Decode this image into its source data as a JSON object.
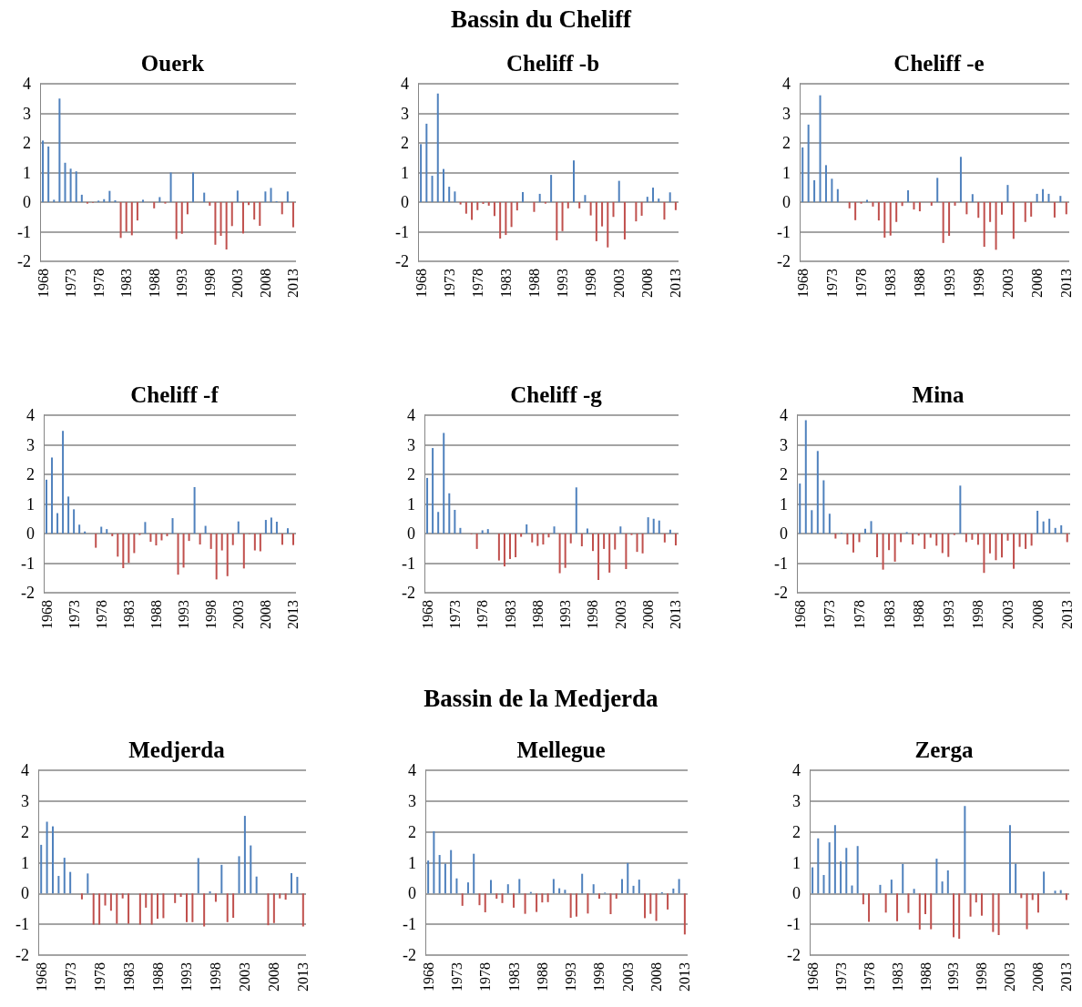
{
  "chart_data": [
    {
      "type": "bar",
      "title": "Ouerk",
      "annotations": [
        "Bassin du Cheliff"
      ],
      "categories": [
        "1968",
        null,
        null,
        null,
        null,
        "1973",
        null,
        null,
        null,
        null,
        "1978",
        null,
        null,
        null,
        null,
        "1983",
        null,
        null,
        null,
        null,
        "1988",
        null,
        null,
        null,
        null,
        "1993",
        null,
        null,
        null,
        null,
        "1998",
        null,
        null,
        null,
        null,
        "2003",
        null,
        null,
        null,
        null,
        "2008",
        null,
        null,
        null,
        null,
        "2013"
      ],
      "ylim": [
        -2,
        4
      ],
      "yticks": [
        -2,
        -1,
        0,
        1,
        2,
        3,
        4
      ],
      "grid": "y",
      "values": [
        2.08,
        1.88,
        0.08,
        3.5,
        1.33,
        1.13,
        1.04,
        0.25,
        -0.05,
        -0.02,
        0.05,
        0.1,
        0.38,
        0.06,
        -1.21,
        -1.0,
        -1.12,
        -0.62,
        0.08,
        0,
        -0.21,
        0.17,
        -0.05,
        1.0,
        -1.25,
        -1.07,
        -0.41,
        1.0,
        0,
        0.32,
        -0.12,
        -1.44,
        -1.14,
        -1.6,
        -0.81,
        0.39,
        -1.06,
        -0.1,
        -0.59,
        -0.8,
        0.36,
        0.48,
        0.03,
        -0.41,
        0.36,
        -0.85
      ],
      "colors": [
        "#4f81bd",
        "#4f81bd",
        "#4f81bd",
        "#4f81bd",
        "#4f81bd",
        "#4f81bd",
        "#4f81bd",
        "#4f81bd",
        "#c0504d",
        "#c0504d",
        "#4f81bd",
        "#4f81bd",
        "#4f81bd",
        "#4f81bd",
        "#c0504d",
        "#c0504d",
        "#c0504d",
        "#c0504d",
        "#4f81bd",
        "#4f81bd",
        "#c0504d",
        "#4f81bd",
        "#c0504d",
        "#4f81bd",
        "#c0504d",
        "#c0504d",
        "#c0504d",
        "#4f81bd",
        "#4f81bd",
        "#4f81bd",
        "#c0504d",
        "#c0504d",
        "#c0504d",
        "#c0504d",
        "#c0504d",
        "#4f81bd",
        "#c0504d",
        "#c0504d",
        "#c0504d",
        "#c0504d",
        "#4f81bd",
        "#4f81bd",
        "#4f81bd",
        "#c0504d",
        "#4f81bd",
        "#c0504d"
      ]
    },
    {
      "type": "bar",
      "title": "Cheliff -b",
      "categories": [
        "1968",
        null,
        null,
        null,
        null,
        "1973",
        null,
        null,
        null,
        null,
        "1978",
        null,
        null,
        null,
        null,
        "1983",
        null,
        null,
        null,
        null,
        "1988",
        null,
        null,
        null,
        null,
        "1993",
        null,
        null,
        null,
        null,
        "1998",
        null,
        null,
        null,
        null,
        "2003",
        null,
        null,
        null,
        null,
        "2008",
        null,
        null,
        null,
        null,
        "2013"
      ],
      "ylim": [
        -2,
        4
      ],
      "yticks": [
        -2,
        -1,
        0,
        1,
        2,
        3,
        4
      ],
      "grid": "y",
      "values": [
        1.96,
        2.65,
        0.89,
        3.67,
        1.12,
        0.52,
        0.36,
        -0.08,
        -0.39,
        -0.6,
        -0.27,
        -0.06,
        -0.12,
        -0.47,
        -1.23,
        -1.11,
        -0.84,
        -0.28,
        0.34,
        0,
        -0.33,
        0.28,
        -0.05,
        0.92,
        -1.29,
        -0.98,
        -0.21,
        1.41,
        -0.21,
        0.24,
        -0.45,
        -1.32,
        -0.82,
        -1.53,
        -0.5,
        0.72,
        -1.26,
        0,
        -0.65,
        -0.46,
        0.18,
        0.49,
        0.12,
        -0.59,
        0.33,
        -0.27
      ],
      "colors": [
        "#4f81bd",
        "#4f81bd",
        "#4f81bd",
        "#4f81bd",
        "#4f81bd",
        "#4f81bd",
        "#4f81bd",
        "#c0504d",
        "#c0504d",
        "#c0504d",
        "#c0504d",
        "#c0504d",
        "#c0504d",
        "#c0504d",
        "#c0504d",
        "#c0504d",
        "#c0504d",
        "#c0504d",
        "#4f81bd",
        "#4f81bd",
        "#c0504d",
        "#4f81bd",
        "#c0504d",
        "#4f81bd",
        "#c0504d",
        "#c0504d",
        "#c0504d",
        "#4f81bd",
        "#c0504d",
        "#4f81bd",
        "#c0504d",
        "#c0504d",
        "#c0504d",
        "#c0504d",
        "#c0504d",
        "#4f81bd",
        "#c0504d",
        "#4f81bd",
        "#c0504d",
        "#c0504d",
        "#4f81bd",
        "#4f81bd",
        "#4f81bd",
        "#c0504d",
        "#4f81bd",
        "#c0504d"
      ]
    },
    {
      "type": "bar",
      "title": "Cheliff -e",
      "categories": [
        "1968",
        null,
        null,
        null,
        null,
        "1973",
        null,
        null,
        null,
        null,
        "1978",
        null,
        null,
        null,
        null,
        "1983",
        null,
        null,
        null,
        null,
        "1988",
        null,
        null,
        null,
        null,
        "1993",
        null,
        null,
        null,
        null,
        "1998",
        null,
        null,
        null,
        null,
        "2003",
        null,
        null,
        null,
        null,
        "2008",
        null,
        null,
        null,
        null,
        "2013"
      ],
      "ylim": [
        -2,
        4
      ],
      "yticks": [
        -2,
        -1,
        0,
        1,
        2,
        3,
        4
      ],
      "grid": "y",
      "values": [
        1.85,
        2.62,
        0.74,
        3.61,
        1.25,
        0.79,
        0.44,
        0,
        -0.21,
        -0.61,
        -0.05,
        0.08,
        -0.15,
        -0.62,
        -1.2,
        -1.13,
        -0.67,
        -0.13,
        0.4,
        -0.25,
        -0.31,
        0,
        -0.12,
        0.82,
        -1.38,
        -1.14,
        -0.12,
        1.53,
        -0.41,
        0.27,
        -0.53,
        -1.51,
        -0.67,
        -1.61,
        -0.42,
        0.58,
        -1.24,
        0,
        -0.67,
        -0.49,
        0.28,
        0.44,
        0.28,
        -0.52,
        0.21,
        -0.41
      ],
      "colors": [
        "#4f81bd",
        "#4f81bd",
        "#4f81bd",
        "#4f81bd",
        "#4f81bd",
        "#4f81bd",
        "#4f81bd",
        "#4f81bd",
        "#c0504d",
        "#c0504d",
        "#c0504d",
        "#4f81bd",
        "#c0504d",
        "#c0504d",
        "#c0504d",
        "#c0504d",
        "#c0504d",
        "#c0504d",
        "#4f81bd",
        "#c0504d",
        "#c0504d",
        "#4f81bd",
        "#c0504d",
        "#4f81bd",
        "#c0504d",
        "#c0504d",
        "#c0504d",
        "#4f81bd",
        "#c0504d",
        "#4f81bd",
        "#c0504d",
        "#c0504d",
        "#c0504d",
        "#c0504d",
        "#c0504d",
        "#4f81bd",
        "#c0504d",
        "#4f81bd",
        "#c0504d",
        "#c0504d",
        "#4f81bd",
        "#4f81bd",
        "#4f81bd",
        "#c0504d",
        "#4f81bd",
        "#c0504d"
      ]
    },
    {
      "type": "bar",
      "title": "Cheliff -f",
      "categories": [
        "1968",
        null,
        null,
        null,
        null,
        "1973",
        null,
        null,
        null,
        null,
        "1978",
        null,
        null,
        null,
        null,
        "1983",
        null,
        null,
        null,
        null,
        "1988",
        null,
        null,
        null,
        null,
        "1993",
        null,
        null,
        null,
        null,
        "1998",
        null,
        null,
        null,
        null,
        "2003",
        null,
        null,
        null,
        null,
        "2008",
        null,
        null,
        null,
        null,
        "2013"
      ],
      "ylim": [
        -2,
        4
      ],
      "yticks": [
        -2,
        -1,
        0,
        1,
        2,
        3,
        4
      ],
      "grid": "y",
      "values": [
        1.82,
        2.57,
        0.69,
        3.47,
        1.25,
        0.82,
        0.3,
        0.07,
        0,
        -0.48,
        0.23,
        0.15,
        -0.09,
        -0.78,
        -1.17,
        -0.99,
        -0.66,
        -0.05,
        0.39,
        -0.28,
        -0.4,
        -0.23,
        -0.09,
        0.52,
        -1.39,
        -1.15,
        -0.25,
        1.57,
        -0.37,
        0.26,
        -0.52,
        -1.55,
        -0.57,
        -1.44,
        -0.39,
        0.41,
        -1.18,
        -0.02,
        -0.57,
        -0.6,
        0.46,
        0.54,
        0.4,
        -0.38,
        0.18,
        -0.39
      ],
      "colors": [
        "#4f81bd",
        "#4f81bd",
        "#4f81bd",
        "#4f81bd",
        "#4f81bd",
        "#4f81bd",
        "#4f81bd",
        "#4f81bd",
        "#4f81bd",
        "#c0504d",
        "#4f81bd",
        "#4f81bd",
        "#c0504d",
        "#c0504d",
        "#c0504d",
        "#c0504d",
        "#c0504d",
        "#c0504d",
        "#4f81bd",
        "#c0504d",
        "#c0504d",
        "#c0504d",
        "#c0504d",
        "#4f81bd",
        "#c0504d",
        "#c0504d",
        "#c0504d",
        "#4f81bd",
        "#c0504d",
        "#4f81bd",
        "#c0504d",
        "#c0504d",
        "#c0504d",
        "#c0504d",
        "#c0504d",
        "#4f81bd",
        "#c0504d",
        "#c0504d",
        "#c0504d",
        "#c0504d",
        "#4f81bd",
        "#4f81bd",
        "#4f81bd",
        "#c0504d",
        "#4f81bd",
        "#c0504d"
      ]
    },
    {
      "type": "bar",
      "title": "Cheliff -g",
      "categories": [
        "1968",
        null,
        null,
        null,
        null,
        "1973",
        null,
        null,
        null,
        null,
        "1978",
        null,
        null,
        null,
        null,
        "1983",
        null,
        null,
        null,
        null,
        "1988",
        null,
        null,
        null,
        null,
        "1993",
        null,
        null,
        null,
        null,
        "1998",
        null,
        null,
        null,
        null,
        "2003",
        null,
        null,
        null,
        null,
        "2008",
        null,
        null,
        null,
        null,
        "2013"
      ],
      "ylim": [
        -2,
        4
      ],
      "yticks": [
        -2,
        -1,
        0,
        1,
        2,
        3,
        4
      ],
      "grid": "y",
      "values": [
        1.88,
        2.89,
        0.73,
        3.4,
        1.36,
        0.8,
        0.19,
        0,
        -0.02,
        -0.52,
        0.11,
        0.15,
        0,
        -0.91,
        -1.11,
        -0.86,
        -0.8,
        -0.11,
        0.31,
        -0.3,
        -0.42,
        -0.37,
        -0.13,
        0.24,
        -1.34,
        -1.16,
        -0.33,
        1.56,
        -0.43,
        0.17,
        -0.59,
        -1.57,
        -0.52,
        -1.32,
        -0.54,
        0.24,
        -1.2,
        -0.05,
        -0.62,
        -0.67,
        0.55,
        0.5,
        0.44,
        -0.3,
        0.13,
        -0.4
      ],
      "colors": [
        "#4f81bd",
        "#4f81bd",
        "#4f81bd",
        "#4f81bd",
        "#4f81bd",
        "#4f81bd",
        "#4f81bd",
        "#4f81bd",
        "#c0504d",
        "#c0504d",
        "#4f81bd",
        "#4f81bd",
        "#4f81bd",
        "#c0504d",
        "#c0504d",
        "#c0504d",
        "#c0504d",
        "#c0504d",
        "#4f81bd",
        "#c0504d",
        "#c0504d",
        "#c0504d",
        "#c0504d",
        "#4f81bd",
        "#c0504d",
        "#c0504d",
        "#c0504d",
        "#4f81bd",
        "#c0504d",
        "#4f81bd",
        "#c0504d",
        "#c0504d",
        "#c0504d",
        "#c0504d",
        "#c0504d",
        "#4f81bd",
        "#c0504d",
        "#c0504d",
        "#c0504d",
        "#c0504d",
        "#4f81bd",
        "#4f81bd",
        "#4f81bd",
        "#c0504d",
        "#4f81bd",
        "#c0504d"
      ]
    },
    {
      "type": "bar",
      "title": "Mina",
      "categories": [
        "1968",
        null,
        null,
        null,
        null,
        "1973",
        null,
        null,
        null,
        null,
        "1978",
        null,
        null,
        null,
        null,
        "1983",
        null,
        null,
        null,
        null,
        "1988",
        null,
        null,
        null,
        null,
        "1993",
        null,
        null,
        null,
        null,
        "1998",
        null,
        null,
        null,
        null,
        "2003",
        null,
        null,
        null,
        null,
        "2008",
        null,
        null,
        null,
        null,
        "2013"
      ],
      "ylim": [
        -2,
        4
      ],
      "yticks": [
        -2,
        -1,
        0,
        1,
        2,
        3,
        4
      ],
      "grid": "y",
      "values": [
        1.69,
        3.83,
        0.79,
        2.79,
        1.8,
        0.67,
        -0.17,
        0.03,
        -0.37,
        -0.64,
        -0.29,
        0.16,
        0.42,
        -0.8,
        -1.22,
        -0.56,
        -0.95,
        -0.29,
        0.05,
        -0.37,
        -0.07,
        -0.52,
        -0.14,
        -0.41,
        -0.66,
        -0.79,
        -0.05,
        1.62,
        -0.29,
        -0.21,
        -0.38,
        -1.33,
        -0.67,
        -0.9,
        -0.81,
        -0.24,
        -1.19,
        -0.45,
        -0.52,
        -0.41,
        0.77,
        0.41,
        0.5,
        0.19,
        0.28,
        -0.29
      ],
      "colors": [
        "#4f81bd",
        "#4f81bd",
        "#4f81bd",
        "#4f81bd",
        "#4f81bd",
        "#4f81bd",
        "#c0504d",
        "#4f81bd",
        "#c0504d",
        "#c0504d",
        "#c0504d",
        "#4f81bd",
        "#4f81bd",
        "#c0504d",
        "#c0504d",
        "#c0504d",
        "#c0504d",
        "#c0504d",
        "#4f81bd",
        "#c0504d",
        "#c0504d",
        "#c0504d",
        "#c0504d",
        "#c0504d",
        "#c0504d",
        "#c0504d",
        "#c0504d",
        "#4f81bd",
        "#c0504d",
        "#c0504d",
        "#c0504d",
        "#c0504d",
        "#c0504d",
        "#c0504d",
        "#c0504d",
        "#c0504d",
        "#c0504d",
        "#c0504d",
        "#c0504d",
        "#c0504d",
        "#4f81bd",
        "#4f81bd",
        "#4f81bd",
        "#4f81bd",
        "#4f81bd",
        "#c0504d"
      ]
    },
    {
      "type": "bar",
      "title": "Medjerda",
      "annotations": [
        "Bassin de la Medjerda"
      ],
      "categories": [
        "1968",
        null,
        null,
        null,
        null,
        "1973",
        null,
        null,
        null,
        null,
        "1978",
        null,
        null,
        null,
        null,
        "1983",
        null,
        null,
        null,
        null,
        "1988",
        null,
        null,
        null,
        null,
        "1993",
        null,
        null,
        null,
        null,
        "1998",
        null,
        null,
        null,
        null,
        "2003",
        null,
        null,
        null,
        null,
        "2008",
        null,
        null,
        null,
        null,
        "2013"
      ],
      "ylim": [
        -2,
        4
      ],
      "yticks": [
        -2,
        -1,
        0,
        1,
        2,
        3,
        4
      ],
      "grid": "y",
      "values": [
        1.58,
        2.33,
        2.18,
        0.57,
        1.16,
        0.7,
        0,
        -0.19,
        0.65,
        -1.01,
        -1.01,
        -0.39,
        -0.56,
        -0.98,
        -0.16,
        -0.98,
        0,
        -1.01,
        -0.46,
        -1.01,
        -0.82,
        -0.8,
        null,
        -0.31,
        -0.11,
        -0.93,
        -0.93,
        1.15,
        -1.07,
        0.07,
        -0.27,
        0.93,
        -0.93,
        -0.79,
        1.21,
        2.52,
        1.56,
        0.55,
        0,
        -1.03,
        -0.96,
        -0.16,
        -0.2,
        0.66,
        0.54,
        -1.07
      ],
      "colors": [
        "#4f81bd",
        "#4f81bd",
        "#4f81bd",
        "#4f81bd",
        "#4f81bd",
        "#4f81bd",
        "#4f81bd",
        "#c0504d",
        "#4f81bd",
        "#c0504d",
        "#c0504d",
        "#c0504d",
        "#c0504d",
        "#c0504d",
        "#c0504d",
        "#c0504d",
        "#4f81bd",
        "#c0504d",
        "#c0504d",
        "#c0504d",
        "#c0504d",
        "#c0504d",
        "#4f81bd",
        "#c0504d",
        "#c0504d",
        "#c0504d",
        "#c0504d",
        "#4f81bd",
        "#c0504d",
        "#4f81bd",
        "#c0504d",
        "#4f81bd",
        "#c0504d",
        "#c0504d",
        "#4f81bd",
        "#4f81bd",
        "#4f81bd",
        "#4f81bd",
        "#4f81bd",
        "#c0504d",
        "#c0504d",
        "#c0504d",
        "#c0504d",
        "#4f81bd",
        "#4f81bd",
        "#c0504d"
      ]
    },
    {
      "type": "bar",
      "title": "Mellegue",
      "categories": [
        "1968",
        null,
        null,
        null,
        null,
        "1973",
        null,
        null,
        null,
        null,
        "1978",
        null,
        null,
        null,
        null,
        "1983",
        null,
        null,
        null,
        null,
        "1988",
        null,
        null,
        null,
        null,
        "1993",
        null,
        null,
        null,
        null,
        "1998",
        null,
        null,
        null,
        null,
        "2003",
        null,
        null,
        null,
        null,
        "2008",
        null,
        null,
        null,
        null,
        "2013"
      ],
      "ylim": [
        -2,
        4
      ],
      "yticks": [
        -2,
        -1,
        0,
        1,
        2,
        3,
        4
      ],
      "grid": "y",
      "values": [
        1.07,
        2.02,
        1.25,
        0.97,
        1.41,
        0.49,
        -0.4,
        0.36,
        1.29,
        -0.38,
        -0.61,
        0.44,
        -0.17,
        -0.31,
        0.3,
        -0.46,
        0.47,
        -0.66,
        0.05,
        -0.6,
        -0.29,
        -0.28,
        0.47,
        0.17,
        0.12,
        -0.79,
        -0.75,
        0.64,
        -0.65,
        0.3,
        -0.17,
        0.03,
        -0.67,
        -0.17,
        0.47,
        0.99,
        0.25,
        0.45,
        -0.8,
        -0.66,
        -0.89,
        0.04,
        -0.52,
        0.16,
        0.47,
        -1.33
      ],
      "colors": [
        "#4f81bd",
        "#4f81bd",
        "#4f81bd",
        "#4f81bd",
        "#4f81bd",
        "#4f81bd",
        "#c0504d",
        "#4f81bd",
        "#4f81bd",
        "#c0504d",
        "#c0504d",
        "#4f81bd",
        "#c0504d",
        "#c0504d",
        "#4f81bd",
        "#c0504d",
        "#4f81bd",
        "#c0504d",
        "#4f81bd",
        "#c0504d",
        "#c0504d",
        "#c0504d",
        "#4f81bd",
        "#4f81bd",
        "#4f81bd",
        "#c0504d",
        "#c0504d",
        "#4f81bd",
        "#c0504d",
        "#4f81bd",
        "#c0504d",
        "#4f81bd",
        "#c0504d",
        "#c0504d",
        "#4f81bd",
        "#4f81bd",
        "#4f81bd",
        "#4f81bd",
        "#c0504d",
        "#c0504d",
        "#c0504d",
        "#4f81bd",
        "#c0504d",
        "#4f81bd",
        "#4f81bd",
        "#c0504d"
      ]
    },
    {
      "type": "bar",
      "title": "Zerga",
      "categories": [
        "1968",
        null,
        null,
        null,
        null,
        "1973",
        null,
        null,
        null,
        null,
        "1978",
        null,
        null,
        null,
        null,
        "1983",
        null,
        null,
        null,
        null,
        "1988",
        null,
        null,
        null,
        null,
        "1993",
        null,
        null,
        null,
        null,
        "1998",
        null,
        null,
        null,
        null,
        "2003",
        null,
        null,
        null,
        null,
        "2008",
        null,
        null,
        null,
        null,
        "2013"
      ],
      "ylim": [
        -2,
        4
      ],
      "yticks": [
        -2,
        -1,
        0,
        1,
        2,
        3,
        4
      ],
      "grid": "y",
      "values": [
        0.85,
        1.79,
        0.6,
        1.66,
        2.22,
        1.04,
        1.48,
        0.26,
        1.54,
        -0.35,
        -0.92,
        0,
        0.28,
        -0.62,
        0.45,
        -0.9,
        0.96,
        -0.63,
        0.15,
        -1.17,
        -0.67,
        -1.16,
        1.13,
        0.39,
        0.75,
        -1.42,
        -1.47,
        2.84,
        -0.75,
        -0.29,
        -0.72,
        0,
        -1.25,
        -1.35,
        0,
        2.22,
        0.97,
        -0.15,
        -1.16,
        -0.21,
        -0.62,
        0.71,
        0,
        0.09,
        0.11,
        -0.21
      ],
      "colors": [
        "#4f81bd",
        "#4f81bd",
        "#4f81bd",
        "#4f81bd",
        "#4f81bd",
        "#4f81bd",
        "#4f81bd",
        "#4f81bd",
        "#4f81bd",
        "#c0504d",
        "#c0504d",
        "#4f81bd",
        "#4f81bd",
        "#c0504d",
        "#4f81bd",
        "#c0504d",
        "#4f81bd",
        "#c0504d",
        "#4f81bd",
        "#c0504d",
        "#c0504d",
        "#c0504d",
        "#4f81bd",
        "#4f81bd",
        "#4f81bd",
        "#c0504d",
        "#c0504d",
        "#4f81bd",
        "#c0504d",
        "#c0504d",
        "#c0504d",
        "#4f81bd",
        "#c0504d",
        "#c0504d",
        "#4f81bd",
        "#4f81bd",
        "#4f81bd",
        "#c0504d",
        "#c0504d",
        "#c0504d",
        "#c0504d",
        "#4f81bd",
        "#4f81bd",
        "#4f81bd",
        "#4f81bd",
        "#c0504d"
      ]
    }
  ]
}
